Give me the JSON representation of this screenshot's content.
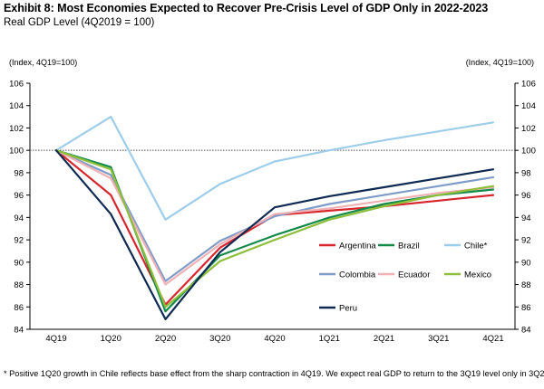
{
  "header": {
    "title": "Exhibit 8: Most Economies Expected to Recover Pre-Crisis Level of GDP Only in 2022-2023",
    "subtitle": "Real GDP Level (4Q2019 = 100)"
  },
  "footnote": "* Positive 1Q20 growth in Chile reflects base effect from the sharp contraction in 4Q19. We expect real GDP to return to the 3Q19 level only in 3Q22.",
  "chart_data": {
    "type": "line",
    "title": "",
    "xlabel": "",
    "ylabel_left": "(Index, 4Q19=100)",
    "ylabel_right": "(Index, 4Q19=100)",
    "ylim": [
      84,
      106
    ],
    "yticks": [
      84,
      86,
      88,
      90,
      92,
      94,
      96,
      98,
      100,
      102,
      104,
      106
    ],
    "categories": [
      "4Q19",
      "1Q20",
      "2Q20",
      "3Q20",
      "4Q20",
      "1Q21",
      "2Q21",
      "3Q21",
      "4Q21"
    ],
    "reference_line": 100,
    "grid": false,
    "legend_position": "lower-right inside plot",
    "series": [
      {
        "name": "Argentina",
        "color": "#d7262c",
        "values": [
          100,
          96.0,
          86.2,
          91.3,
          94.2,
          94.6,
          95.0,
          95.5,
          96.0
        ]
      },
      {
        "name": "Brazil",
        "color": "#138a4a",
        "values": [
          100,
          98.5,
          85.6,
          90.6,
          92.4,
          94.0,
          95.2,
          96.0,
          96.5
        ]
      },
      {
        "name": "Chile*",
        "color": "#9ecdea",
        "values": [
          100,
          103.0,
          93.8,
          97.0,
          99.0,
          100.0,
          100.9,
          101.7,
          102.5
        ]
      },
      {
        "name": "Colombia",
        "color": "#7f9bc7",
        "values": [
          100,
          97.8,
          88.3,
          91.9,
          94.1,
          95.2,
          96.0,
          96.8,
          97.6
        ]
      },
      {
        "name": "Ecuador",
        "color": "#efb1b5",
        "values": [
          100,
          97.5,
          88.0,
          91.6,
          94.3,
          94.8,
          95.5,
          96.2,
          96.7
        ]
      },
      {
        "name": "Mexico",
        "color": "#8fbf3a",
        "values": [
          100,
          98.3,
          86.0,
          90.1,
          92.0,
          93.8,
          95.0,
          96.0,
          96.8
        ]
      },
      {
        "name": "Peru",
        "color": "#0f2a52",
        "values": [
          100,
          94.3,
          84.9,
          90.9,
          94.9,
          95.9,
          96.7,
          97.5,
          98.3
        ]
      }
    ]
  }
}
